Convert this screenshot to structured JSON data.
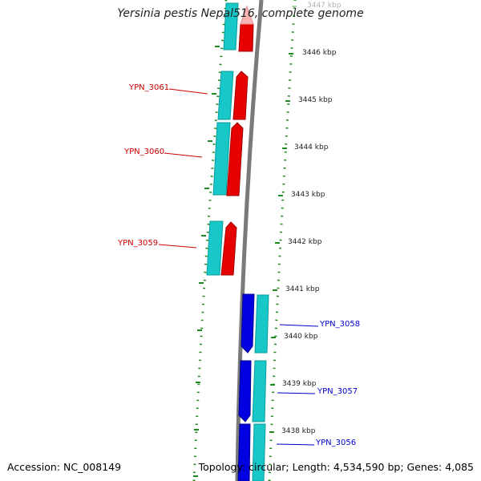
{
  "title": "Yersinia pestis Nepal516, complete genome",
  "accession_text": "Accession: NC_008149",
  "summary_text": "Topology: circular; Length: 4,534,590 bp; Genes: 4,085",
  "colors": {
    "forward_cds": "#ff0000",
    "reverse_cds": "#0000e6",
    "gene": "#00cccc",
    "backbone": "#808080",
    "ruler": "#228822",
    "forward_label": "#cc0000",
    "reverse_label": "#0000cc"
  },
  "ruler_ticks": [
    {
      "label": "3447 kbp",
      "faded": true
    },
    {
      "label": "3446 kbp"
    },
    {
      "label": "3445 kbp"
    },
    {
      "label": "3444 kbp"
    },
    {
      "label": "3443 kbp"
    },
    {
      "label": "3442 kbp"
    },
    {
      "label": "3441 kbp"
    },
    {
      "label": "3440 kbp"
    },
    {
      "label": "3439 kbp"
    },
    {
      "label": "3438 kbp"
    }
  ],
  "forward_genes": [
    {
      "label": "YPN_3061"
    },
    {
      "label": "YPN_3060"
    },
    {
      "label": "YPN_3059"
    }
  ],
  "reverse_genes": [
    {
      "label": "YPN_3058"
    },
    {
      "label": "YPN_3057"
    },
    {
      "label": "YPN_3056"
    }
  ]
}
